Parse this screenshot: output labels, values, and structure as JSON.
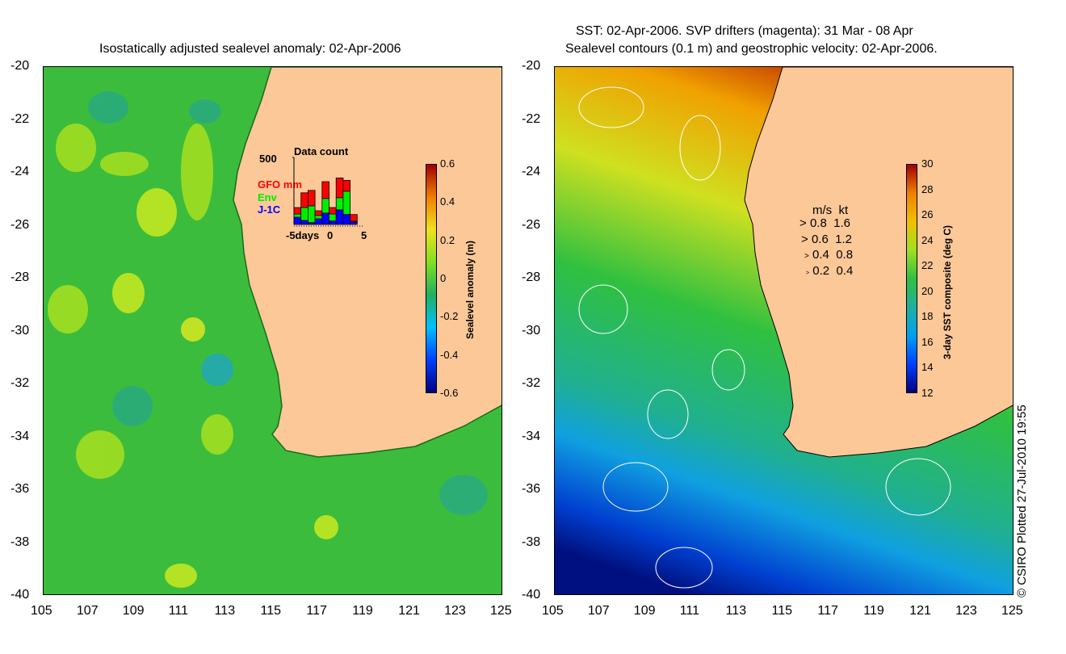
{
  "left": {
    "title": "Isostatically adjusted sealevel anomaly: 02-Apr-2006",
    "colorbar": {
      "label": "Sealevel anomaly (m)",
      "ticks": [
        "0.6",
        "0.4",
        "0.2",
        "0",
        "-0.2",
        "-0.4",
        "-0.6"
      ],
      "range": [
        -0.6,
        0.6
      ]
    },
    "inset": {
      "title": "Data count",
      "ymax_label": "500",
      "ymax": 500,
      "legend": [
        {
          "name": "GFO mm",
          "color": "#ff0000"
        },
        {
          "name": "Env",
          "color": "#00ee00"
        },
        {
          "name": "J-1C",
          "color": "#0000ff"
        }
      ],
      "x_labels": [
        "-5days",
        "0",
        "5"
      ],
      "bars": [
        {
          "J-1C": 54,
          "Env": 24,
          "GFO": 48
        },
        {
          "J-1C": 30,
          "Env": 97,
          "GFO": 109
        },
        {
          "J-1C": 14,
          "Env": 125,
          "GFO": 115
        },
        {
          "J-1C": 42,
          "Env": 26,
          "GFO": 34
        },
        {
          "J-1C": 85,
          "Env": 109,
          "GFO": 125
        },
        {
          "J-1C": 26,
          "Env": 52,
          "GFO": 48
        },
        {
          "J-1C": 109,
          "Env": 91,
          "GFO": 147
        },
        {
          "J-1C": 75,
          "Env": 173,
          "GFO": 81
        },
        {
          "J-1C": 20,
          "Env": 4,
          "GFO": 50
        }
      ]
    }
  },
  "right": {
    "title_line1": "SST: 02-Apr-2006. SVP drifters (magenta): 31 Mar - 08 Apr",
    "title_line2": "Sealevel contours (0.1 m) and geostrophic velocity: 02-Apr-2006.",
    "colorbar": {
      "label": "3-day SST composite (deg C)",
      "ticks": [
        "30",
        "28",
        "26",
        "24",
        "22",
        "20",
        "18",
        "16",
        "14",
        "12"
      ],
      "range": [
        12,
        30
      ]
    },
    "velocity_legend": {
      "header": "m/s  kt",
      "rows": [
        "0.8  1.6",
        "0.6  1.2",
        "0.4  0.8",
        "0.2  0.4"
      ]
    }
  },
  "axes": {
    "lat_labels": [
      "-20",
      "-22",
      "-24",
      "-26",
      "-28",
      "-30",
      "-32",
      "-34",
      "-36",
      "-38",
      "-40"
    ],
    "lon_labels": [
      "105",
      "107",
      "109",
      "111",
      "113",
      "115",
      "117",
      "119",
      "121",
      "123",
      "125"
    ]
  },
  "copyright": "© CSIRO Plotted 27-Jul-2010 19:55",
  "colors": {
    "land": "#fcc898",
    "ocean_left": "#3cc03c"
  }
}
